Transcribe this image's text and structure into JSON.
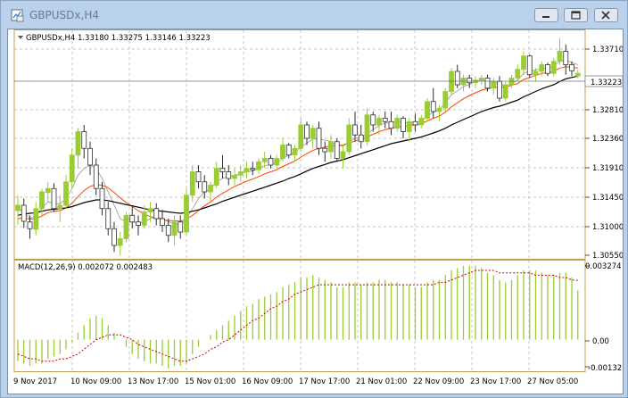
{
  "window": {
    "title": "GBPUSDx,H4",
    "icon": "chart-window-icon",
    "buttons": [
      "minimize-icon",
      "restore-icon",
      "close-icon"
    ]
  },
  "main_chart": {
    "header": "GBPUSDx,H4  1.33180 1.33275 1.33146 1.33223",
    "current_price_label": "1.33223",
    "price_ticks": [
      "1.33710",
      "1.33223",
      "1.32810",
      "1.32360",
      "1.31910",
      "1.31450",
      "1.31000",
      "1.30550"
    ]
  },
  "macd": {
    "header": "MACD(12,26,9) 0.002072 0.002483",
    "ticks": [
      "0.003274",
      "0.00",
      "-0.00132"
    ]
  },
  "time_axis": [
    "9 Nov 2017",
    "10 Nov 09:00",
    "13 Nov 17:00",
    "15 Nov 01:00",
    "16 Nov 09:00",
    "17 Nov 17:00",
    "21 Nov 01:00",
    "22 Nov 09:00",
    "23 Nov 17:00",
    "27 Nov 05:00"
  ],
  "colors": {
    "bull_candle": "#9acd32",
    "bear_candle": "#ffffff",
    "candle_outline": "#2e2e2e",
    "ma_fast": "#a0a0a0",
    "ma_mid": "#ff4500",
    "ma_slow": "#000000",
    "macd_hist": "#9acd32",
    "macd_signal": "#cc0000",
    "frame": "#c0a050",
    "grid": "#b0b0b0"
  },
  "chart_data": [
    {
      "type": "candlestick",
      "symbol": "GBPUSDx",
      "timeframe": "H4",
      "ylim": [
        1.3045,
        1.3385
      ],
      "ohlc": [
        [
          1.3117,
          1.314,
          1.3096,
          1.3125
        ],
        [
          1.3125,
          1.3135,
          1.3091,
          1.3101
        ],
        [
          1.31,
          1.311,
          1.3075,
          1.309
        ],
        [
          1.3089,
          1.313,
          1.308,
          1.312
        ],
        [
          1.312,
          1.315,
          1.311,
          1.3145
        ],
        [
          1.3144,
          1.316,
          1.313,
          1.315
        ],
        [
          1.315,
          1.3158,
          1.3115,
          1.312
        ],
        [
          1.312,
          1.314,
          1.31,
          1.3125
        ],
        [
          1.3125,
          1.317,
          1.312,
          1.316
        ],
        [
          1.316,
          1.321,
          1.315,
          1.32
        ],
        [
          1.32,
          1.324,
          1.318,
          1.3235
        ],
        [
          1.3235,
          1.3245,
          1.3195,
          1.321
        ],
        [
          1.321,
          1.322,
          1.317,
          1.3185
        ],
        [
          1.3185,
          1.3195,
          1.314,
          1.315
        ],
        [
          1.315,
          1.316,
          1.311,
          1.312
        ],
        [
          1.312,
          1.313,
          1.308,
          1.309
        ],
        [
          1.309,
          1.31,
          1.3055,
          1.3065
        ],
        [
          1.3065,
          1.3085,
          1.305,
          1.3075
        ],
        [
          1.3075,
          1.3115,
          1.307,
          1.311
        ],
        [
          1.311,
          1.3125,
          1.309,
          1.31
        ],
        [
          1.31,
          1.311,
          1.308,
          1.3095
        ],
        [
          1.3095,
          1.3125,
          1.309,
          1.3115
        ],
        [
          1.3115,
          1.313,
          1.31,
          1.312
        ],
        [
          1.312,
          1.3128,
          1.3095,
          1.3105
        ],
        [
          1.3105,
          1.3118,
          1.3085,
          1.3095
        ],
        [
          1.3095,
          1.3105,
          1.307,
          1.308
        ],
        [
          1.308,
          1.311,
          1.3065,
          1.31
        ],
        [
          1.31,
          1.311,
          1.3075,
          1.3085
        ],
        [
          1.3085,
          1.315,
          1.308,
          1.314
        ],
        [
          1.314,
          1.3185,
          1.313,
          1.3175
        ],
        [
          1.3175,
          1.3185,
          1.315,
          1.316
        ],
        [
          1.316,
          1.317,
          1.3135,
          1.3145
        ],
        [
          1.3145,
          1.316,
          1.313,
          1.3155
        ],
        [
          1.3155,
          1.319,
          1.315,
          1.318
        ],
        [
          1.318,
          1.32,
          1.3165,
          1.3175
        ],
        [
          1.3175,
          1.3185,
          1.3155,
          1.3165
        ],
        [
          1.3165,
          1.318,
          1.3155,
          1.317
        ],
        [
          1.317,
          1.3185,
          1.316,
          1.3175
        ],
        [
          1.3175,
          1.319,
          1.3165,
          1.318
        ],
        [
          1.318,
          1.319,
          1.317,
          1.3178
        ],
        [
          1.3178,
          1.3195,
          1.3172,
          1.319
        ],
        [
          1.319,
          1.3205,
          1.318,
          1.3195
        ],
        [
          1.3195,
          1.32,
          1.318,
          1.3185
        ],
        [
          1.3185,
          1.32,
          1.318,
          1.3195
        ],
        [
          1.3195,
          1.3225,
          1.319,
          1.3215
        ],
        [
          1.3215,
          1.3218,
          1.3195,
          1.32
        ],
        [
          1.32,
          1.3215,
          1.319,
          1.321
        ],
        [
          1.321,
          1.3255,
          1.3205,
          1.3245
        ],
        [
          1.3245,
          1.325,
          1.3215,
          1.3225
        ],
        [
          1.3225,
          1.3245,
          1.321,
          1.324
        ],
        [
          1.324,
          1.325,
          1.32,
          1.321
        ],
        [
          1.321,
          1.322,
          1.319,
          1.3205
        ],
        [
          1.3205,
          1.323,
          1.3195,
          1.322
        ],
        [
          1.322,
          1.3225,
          1.319,
          1.3195
        ],
        [
          1.3195,
          1.3215,
          1.318,
          1.3205
        ],
        [
          1.3205,
          1.3255,
          1.32,
          1.3245
        ],
        [
          1.3245,
          1.3265,
          1.322,
          1.323
        ],
        [
          1.323,
          1.3245,
          1.321,
          1.322
        ],
        [
          1.322,
          1.327,
          1.3215,
          1.326
        ],
        [
          1.326,
          1.3265,
          1.3235,
          1.3245
        ],
        [
          1.3245,
          1.326,
          1.323,
          1.3255
        ],
        [
          1.3255,
          1.3265,
          1.324,
          1.325
        ],
        [
          1.325,
          1.3265,
          1.323,
          1.324
        ],
        [
          1.324,
          1.326,
          1.3235,
          1.3255
        ],
        [
          1.3255,
          1.3258,
          1.3225,
          1.3235
        ],
        [
          1.3235,
          1.3255,
          1.322,
          1.325
        ],
        [
          1.325,
          1.3262,
          1.3235,
          1.3245
        ],
        [
          1.3245,
          1.326,
          1.324,
          1.3255
        ],
        [
          1.3255,
          1.3285,
          1.325,
          1.328
        ],
        [
          1.328,
          1.33,
          1.3255,
          1.3265
        ],
        [
          1.3265,
          1.3275,
          1.325,
          1.327
        ],
        [
          1.327,
          1.33,
          1.3265,
          1.3295
        ],
        [
          1.3295,
          1.333,
          1.329,
          1.3325
        ],
        [
          1.3325,
          1.3335,
          1.33,
          1.3305
        ],
        [
          1.3305,
          1.332,
          1.3295,
          1.3315
        ],
        [
          1.3315,
          1.332,
          1.33,
          1.3308
        ],
        [
          1.3308,
          1.3318,
          1.33,
          1.3312
        ],
        [
          1.3312,
          1.332,
          1.3305,
          1.3315
        ],
        [
          1.3315,
          1.332,
          1.3295,
          1.33
        ],
        [
          1.33,
          1.3315,
          1.329,
          1.331
        ],
        [
          1.331,
          1.3318,
          1.328,
          1.3285
        ],
        [
          1.3285,
          1.331,
          1.328,
          1.3305
        ],
        [
          1.3305,
          1.332,
          1.33,
          1.3315
        ],
        [
          1.3315,
          1.3335,
          1.331,
          1.3328
        ],
        [
          1.3328,
          1.3355,
          1.332,
          1.3348
        ],
        [
          1.3348,
          1.335,
          1.3315,
          1.332
        ],
        [
          1.332,
          1.333,
          1.331,
          1.3325
        ],
        [
          1.3325,
          1.334,
          1.3318,
          1.3335
        ],
        [
          1.3335,
          1.3338,
          1.3318,
          1.3322
        ],
        [
          1.3322,
          1.3345,
          1.3318,
          1.334
        ],
        [
          1.334,
          1.3375,
          1.3335,
          1.3355
        ],
        [
          1.3355,
          1.3365,
          1.332,
          1.3335
        ],
        [
          1.3335,
          1.334,
          1.3318,
          1.3326
        ],
        [
          1.3318,
          1.33275,
          1.33146,
          1.33223
        ]
      ],
      "ma_fast": [
        1.312,
        1.3115,
        1.3105,
        1.311,
        1.312,
        1.313,
        1.3128,
        1.3127,
        1.3135,
        1.315,
        1.317,
        1.318,
        1.3185,
        1.318,
        1.3165,
        1.3145,
        1.3125,
        1.3105,
        1.31,
        1.31,
        1.3098,
        1.31,
        1.3105,
        1.3108,
        1.3105,
        1.31,
        1.3098,
        1.3095,
        1.3105,
        1.312,
        1.3135,
        1.3145,
        1.315,
        1.316,
        1.3165,
        1.3168,
        1.317,
        1.3172,
        1.3175,
        1.3176,
        1.318,
        1.3184,
        1.3186,
        1.3189,
        1.3195,
        1.32,
        1.3204,
        1.3212,
        1.3218,
        1.3224,
        1.3224,
        1.3222,
        1.322,
        1.3215,
        1.3213,
        1.322,
        1.3225,
        1.3226,
        1.3232,
        1.3238,
        1.3244,
        1.3248,
        1.3248,
        1.325,
        1.3248,
        1.3248,
        1.3248,
        1.325,
        1.3258,
        1.3264,
        1.3268,
        1.3278,
        1.329,
        1.3296,
        1.3302,
        1.3306,
        1.331,
        1.3312,
        1.331,
        1.331,
        1.3305,
        1.3304,
        1.3306,
        1.3312,
        1.3322,
        1.3326,
        1.3327,
        1.333,
        1.333,
        1.3333,
        1.334,
        1.3342,
        1.3338,
        1.3335
      ],
      "ma_mid": [
        1.3105,
        1.3106,
        1.3104,
        1.3105,
        1.3109,
        1.3114,
        1.3116,
        1.3117,
        1.3121,
        1.3128,
        1.3138,
        1.3147,
        1.3153,
        1.3156,
        1.3155,
        1.3151,
        1.3144,
        1.3136,
        1.3129,
        1.3123,
        1.3117,
        1.3112,
        1.3108,
        1.3106,
        1.3104,
        1.3102,
        1.3102,
        1.3101,
        1.3104,
        1.311,
        1.3117,
        1.3124,
        1.313,
        1.3137,
        1.3143,
        1.3148,
        1.3153,
        1.3157,
        1.3161,
        1.3164,
        1.3168,
        1.3172,
        1.3175,
        1.3178,
        1.3183,
        1.3187,
        1.3191,
        1.3197,
        1.3202,
        1.3207,
        1.321,
        1.3212,
        1.3214,
        1.3214,
        1.3215,
        1.3218,
        1.3221,
        1.3223,
        1.3227,
        1.3231,
        1.3235,
        1.3238,
        1.324,
        1.3242,
        1.3243,
        1.3244,
        1.3245,
        1.3247,
        1.3251,
        1.3255,
        1.3258,
        1.3264,
        1.3272,
        1.3278,
        1.3284,
        1.3289,
        1.3293,
        1.3297,
        1.3299,
        1.3301,
        1.3301,
        1.3302,
        1.3304,
        1.3307,
        1.3313,
        1.3316,
        1.3319,
        1.3322,
        1.3323,
        1.3325,
        1.333,
        1.3332,
        1.3331,
        1.333
      ],
      "ma_slow": [
        1.311,
        1.3112,
        1.3113,
        1.3114,
        1.3116,
        1.3118,
        1.3119,
        1.312,
        1.3121,
        1.3123,
        1.3126,
        1.3129,
        1.3131,
        1.3133,
        1.3133,
        1.3132,
        1.313,
        1.3128,
        1.3126,
        1.3124,
        1.3122,
        1.312,
        1.3118,
        1.3117,
        1.3116,
        1.3115,
        1.3114,
        1.3113,
        1.3114,
        1.3116,
        1.3118,
        1.3121,
        1.3124,
        1.3127,
        1.3131,
        1.3134,
        1.3137,
        1.314,
        1.3143,
        1.3146,
        1.3149,
        1.3152,
        1.3155,
        1.3158,
        1.3161,
        1.3165,
        1.3168,
        1.3172,
        1.3176,
        1.318,
        1.3183,
        1.3186,
        1.3189,
        1.3191,
        1.3193,
        1.3196,
        1.3199,
        1.3202,
        1.3205,
        1.3208,
        1.3211,
        1.3214,
        1.3217,
        1.3219,
        1.3221,
        1.3223,
        1.3225,
        1.3227,
        1.323,
        1.3233,
        1.3236,
        1.324,
        1.3245,
        1.3249,
        1.3253,
        1.3257,
        1.3261,
        1.3265,
        1.3268,
        1.3271,
        1.3273,
        1.3276,
        1.3279,
        1.3282,
        1.3287,
        1.3291,
        1.3295,
        1.3299,
        1.3302,
        1.3305,
        1.331,
        1.3314,
        1.3316,
        1.3318
      ]
    },
    {
      "type": "bar",
      "indicator": "MACD(12,26,9)",
      "ylim": [
        -0.00132,
        0.003274
      ],
      "histogram": [
        -0.0009,
        -0.001,
        -0.0011,
        -0.001,
        -0.001,
        -0.0008,
        -0.0007,
        -0.0006,
        -0.0004,
        -0.0001,
        0.0003,
        0.0006,
        0.0009,
        0.001,
        0.0009,
        0.0006,
        0.0003,
        0.0,
        -0.0003,
        -0.0006,
        -0.0008,
        -0.0009,
        -0.001,
        -0.001,
        -0.0011,
        -0.0012,
        -0.0011,
        -0.0011,
        -0.001,
        -0.0006,
        -0.0003,
        0.0,
        0.0002,
        0.0004,
        0.0006,
        0.0008,
        0.001,
        0.0012,
        0.0014,
        0.0015,
        0.0017,
        0.0018,
        0.0019,
        0.002,
        0.0022,
        0.0023,
        0.0024,
        0.0026,
        0.0026,
        0.0027,
        0.0026,
        0.0025,
        0.0024,
        0.0022,
        0.0022,
        0.0024,
        0.0024,
        0.0023,
        0.0024,
        0.0024,
        0.0025,
        0.0025,
        0.0024,
        0.0024,
        0.0023,
        0.0023,
        0.0022,
        0.0022,
        0.0024,
        0.0025,
        0.0025,
        0.0027,
        0.0029,
        0.003,
        0.0031,
        0.0031,
        0.0031,
        0.003,
        0.0028,
        0.0027,
        0.0025,
        0.0024,
        0.0025,
        0.0027,
        0.0029,
        0.0029,
        0.0029,
        0.0028,
        0.0027,
        0.0027,
        0.0028,
        0.0028,
        0.0026,
        0.002072
      ],
      "signal": [
        -0.0006,
        -0.0007,
        -0.0008,
        -0.0008,
        -0.0009,
        -0.0009,
        -0.0009,
        -0.0008,
        -0.0008,
        -0.0007,
        -0.0006,
        -0.0004,
        -0.0002,
        0.0,
        0.0001,
        0.0002,
        0.0002,
        0.0002,
        0.0001,
        0.0,
        -0.0002,
        -0.0003,
        -0.0004,
        -0.0005,
        -0.0006,
        -0.0007,
        -0.0008,
        -0.0009,
        -0.0009,
        -0.0008,
        -0.0007,
        -0.0006,
        -0.0004,
        -0.0003,
        -0.0001,
        0.0,
        0.0002,
        0.0004,
        0.0006,
        0.0008,
        0.0009,
        0.0011,
        0.0013,
        0.0014,
        0.0016,
        0.0017,
        0.0019,
        0.002,
        0.0021,
        0.0022,
        0.0023,
        0.0023,
        0.0023,
        0.0023,
        0.0023,
        0.0023,
        0.0023,
        0.0023,
        0.0023,
        0.0023,
        0.0023,
        0.0023,
        0.0023,
        0.0023,
        0.0023,
        0.0023,
        0.0023,
        0.0023,
        0.0023,
        0.0023,
        0.0024,
        0.0024,
        0.0025,
        0.0026,
        0.0027,
        0.0028,
        0.0029,
        0.0029,
        0.0029,
        0.0029,
        0.0028,
        0.0028,
        0.0028,
        0.0028,
        0.0028,
        0.0028,
        0.0027,
        0.0027,
        0.0027,
        0.0027,
        0.0026,
        0.0026,
        0.0025,
        0.002483
      ]
    }
  ]
}
